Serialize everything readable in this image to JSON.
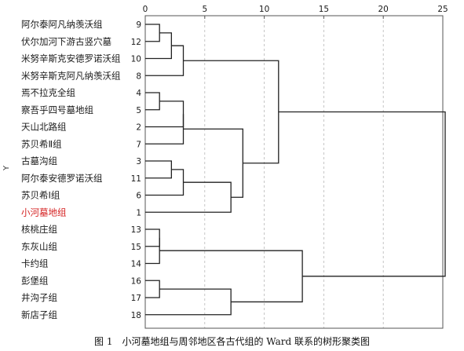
{
  "caption": "图 1　小河墓地组与周邻地区各古代组的 Ward 联系的树形聚类图",
  "highlight_color": "#d42020",
  "chart_data": {
    "type": "dendrogram",
    "ylabel": "Y",
    "xlim": [
      0,
      25
    ],
    "ticks": [
      0,
      5,
      10,
      15,
      20,
      25
    ],
    "grid": "vertical dashed",
    "leaves": [
      {
        "id": 9,
        "label": "阿尔泰阿凡纳羡沃组"
      },
      {
        "id": 12,
        "label": "伏尔加河下游古竖穴墓"
      },
      {
        "id": 10,
        "label": "米努辛斯克安德罗诺沃组"
      },
      {
        "id": 8,
        "label": "米努辛斯克阿凡纳羡沃组"
      },
      {
        "id": 4,
        "label": "焉不拉克全组"
      },
      {
        "id": 5,
        "label": "察吾乎四号墓地组"
      },
      {
        "id": 2,
        "label": "天山北路组"
      },
      {
        "id": 7,
        "label": "苏贝希Ⅱ组"
      },
      {
        "id": 3,
        "label": "古墓沟组"
      },
      {
        "id": 11,
        "label": "阿尔泰安德罗诺沃组"
      },
      {
        "id": 6,
        "label": "苏贝希Ⅰ组"
      },
      {
        "id": 1,
        "label": "小河墓地组",
        "highlight": true
      },
      {
        "id": 13,
        "label": "核桃庄组"
      },
      {
        "id": 15,
        "label": "东灰山组"
      },
      {
        "id": 14,
        "label": "卡约组"
      },
      {
        "id": 16,
        "label": "彭堡组"
      },
      {
        "id": 17,
        "label": "井沟子组"
      },
      {
        "id": 18,
        "label": "新店子组"
      }
    ],
    "merges": [
      {
        "left": "L0",
        "right": "L1",
        "dist": 1.2
      },
      {
        "left": "M0",
        "right": "L2",
        "dist": 2.2
      },
      {
        "left": "M1",
        "right": "L3",
        "dist": 3.2
      },
      {
        "left": "L4",
        "right": "L5",
        "dist": 1.2
      },
      {
        "left": "M3",
        "right": "L6",
        "dist": 3.2
      },
      {
        "left": "M4",
        "right": "L7",
        "dist": 3.2
      },
      {
        "left": "L8",
        "right": "L9",
        "dist": 2.2
      },
      {
        "left": "M6",
        "right": "L10",
        "dist": 3.2
      },
      {
        "left": "M7",
        "right": "L11",
        "dist": 7.2
      },
      {
        "left": "M5",
        "right": "M8",
        "dist": 8.2
      },
      {
        "left": "M2",
        "right": "M9",
        "dist": 11.2
      },
      {
        "left": "L12",
        "right": "L13",
        "dist": 1.2
      },
      {
        "left": "M11",
        "right": "L14",
        "dist": 1.2
      },
      {
        "left": "L15",
        "right": "L16",
        "dist": 1.2
      },
      {
        "left": "M13",
        "right": "L17",
        "dist": 7.2
      },
      {
        "left": "M12",
        "right": "M14",
        "dist": 13.2
      },
      {
        "left": "M10",
        "right": "M15",
        "dist": 25.2
      }
    ]
  }
}
